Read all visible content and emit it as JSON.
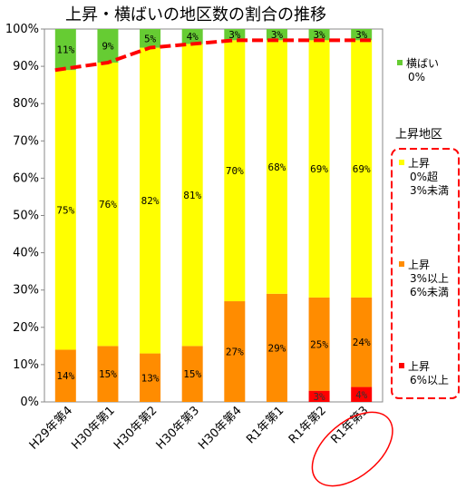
{
  "chart_data": {
    "type": "bar",
    "stacked": true,
    "title": "上昇・横ばいの地区数の割合の推移",
    "categories": [
      "H29年第4",
      "H30年第1",
      "H30年第2",
      "H30年第3",
      "H30年第4",
      "R1年第1",
      "R1年第2",
      "R1年第3"
    ],
    "ylim": [
      0,
      100
    ],
    "yticks": [
      "0%",
      "10%",
      "20%",
      "30%",
      "40%",
      "50%",
      "60%",
      "70%",
      "80%",
      "90%",
      "100%"
    ],
    "series": [
      {
        "key": "rise6",
        "color": "#ff0000",
        "values": [
          0,
          0,
          0,
          0,
          0,
          0,
          3,
          4
        ],
        "labels": [
          "",
          "",
          "",
          "",
          "",
          "",
          "3%",
          "4%"
        ]
      },
      {
        "key": "rise3to6",
        "color": "#ff8c00",
        "values": [
          14,
          15,
          13,
          15,
          27,
          29,
          25,
          24
        ],
        "labels": [
          "14%",
          "15%",
          "13%",
          "15%",
          "27%",
          "29%",
          "25%",
          "24%"
        ]
      },
      {
        "key": "rise0to3",
        "color": "#ffff00",
        "values": [
          75,
          76,
          82,
          81,
          70,
          68,
          69,
          69
        ],
        "labels": [
          "75%",
          "76%",
          "82%",
          "81%",
          "70%",
          "68%",
          "69%",
          "69%"
        ]
      },
      {
        "key": "flat",
        "color": "#66cc33",
        "values": [
          11,
          9,
          5,
          4,
          3,
          3,
          3,
          3
        ],
        "labels": [
          "11%",
          "9%",
          "5%",
          "4%",
          "3%",
          "3%",
          "3%",
          "3%"
        ]
      }
    ],
    "trend_line": {
      "color": "#ff0000",
      "style": "dashed",
      "values": [
        89,
        91,
        95,
        96,
        97,
        97,
        97,
        97
      ]
    },
    "highlighted_category": "R1年第3",
    "legend": {
      "flat": [
        "横ばい",
        "0%"
      ],
      "group_title": "上昇地区",
      "rise0to3": [
        "上昇",
        "0%超",
        "3%未満"
      ],
      "rise3to6": [
        "上昇",
        "3%以上",
        "6%未満"
      ],
      "rise6": [
        "上昇",
        "6%以上"
      ]
    }
  }
}
